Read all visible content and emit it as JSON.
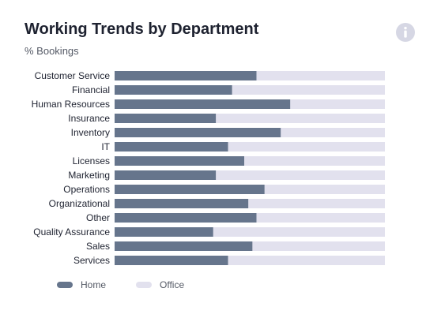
{
  "header": {
    "title": "Working Trends by Department",
    "subtitle": "% Bookings",
    "info_icon": "info-icon"
  },
  "colors": {
    "home": "#66758c",
    "office": "#e2e1ee",
    "info_icon": "#d6d7e4"
  },
  "chart_data": {
    "type": "bar",
    "orientation": "horizontal",
    "stacked": true,
    "title": "Working Trends by Department",
    "subtitle": "% Bookings",
    "categories": [
      "Customer Service",
      "Financial",
      "Human Resources",
      "Insurance",
      "Inventory",
      "IT",
      "Licenses",
      "Marketing",
      "Operations",
      "Organizational",
      "Other",
      "Quality Assurance",
      "Sales",
      "Services"
    ],
    "series": [
      {
        "name": "Home",
        "values": [
          52.5,
          43.5,
          65,
          37.5,
          61.5,
          42,
          48,
          37.5,
          55.5,
          49.5,
          52.5,
          36.5,
          51,
          42
        ]
      },
      {
        "name": "Office",
        "values": [
          47.5,
          56.5,
          35,
          62.5,
          38.5,
          58,
          52,
          62.5,
          44.5,
          50.5,
          47.5,
          63.5,
          49,
          58
        ]
      }
    ],
    "xlim": [
      0,
      100
    ],
    "grid": false,
    "legend_position": "bottom-left"
  }
}
